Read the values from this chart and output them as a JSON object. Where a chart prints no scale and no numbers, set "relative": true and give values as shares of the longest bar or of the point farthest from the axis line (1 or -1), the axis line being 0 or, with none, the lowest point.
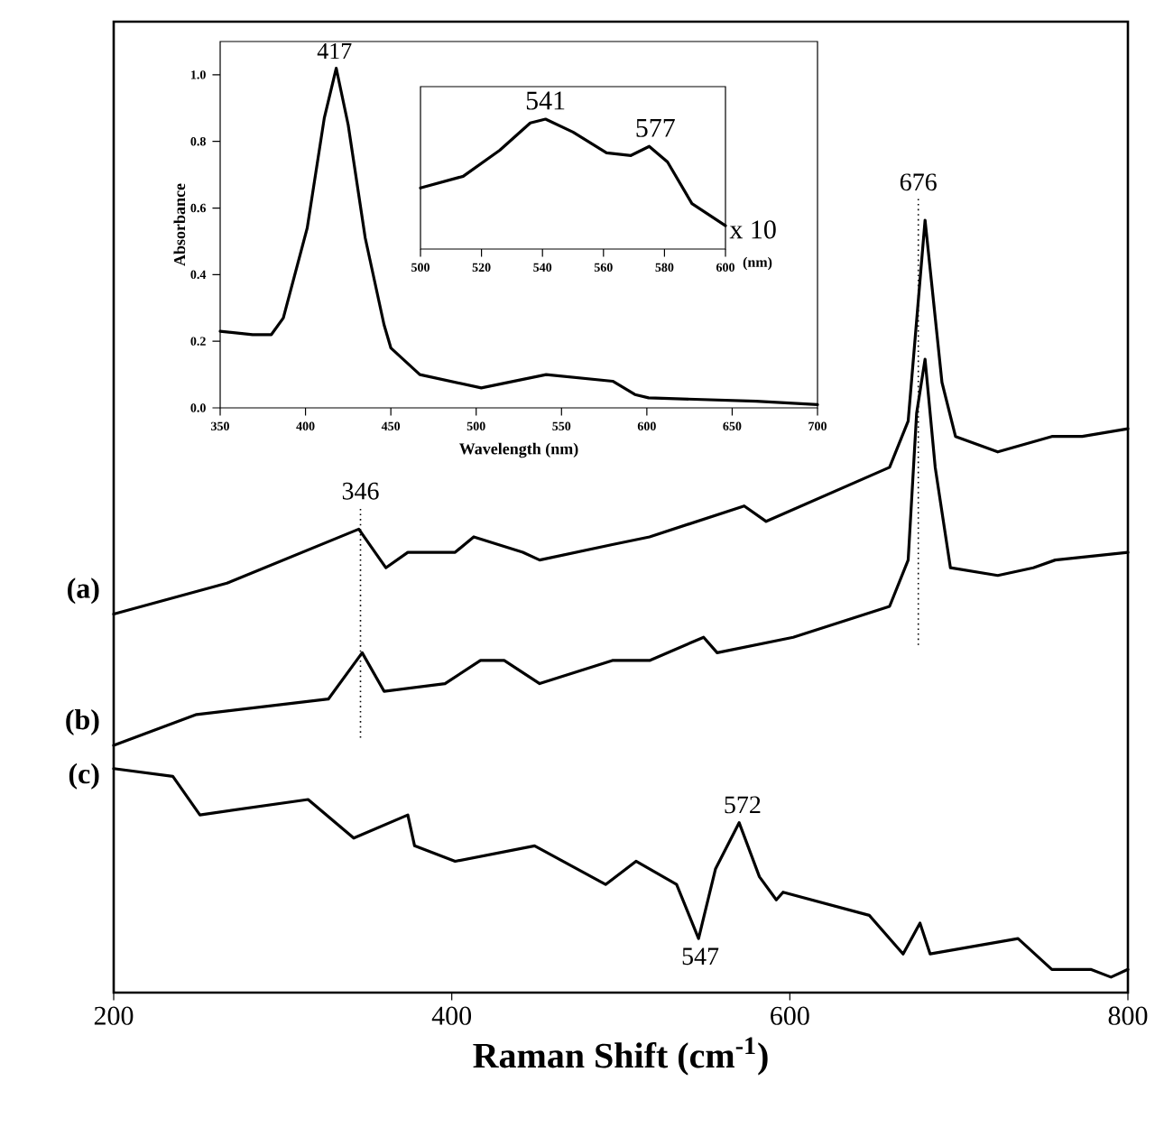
{
  "chart_data": [
    {
      "type": "line",
      "xlabel": "Raman Shift (cm$^{-1}$)",
      "relative": true,
      "xlim": [
        200,
        800
      ],
      "xticks": [
        200,
        400,
        600,
        800
      ],
      "series": [
        {
          "name": "(a)",
          "color": "#000000",
          "x": [
            200,
            267,
            345,
            361,
            374,
            402,
            413,
            442,
            452,
            495,
            517,
            573,
            586,
            659,
            670,
            680,
            690,
            698,
            723,
            755,
            773,
            800
          ],
          "values": [
            0.49,
            0.53,
            0.6,
            0.55,
            0.57,
            0.57,
            0.59,
            0.57,
            0.56,
            0.58,
            0.59,
            0.63,
            0.61,
            0.68,
            0.74,
            1.0,
            0.79,
            0.72,
            0.7,
            0.72,
            0.72,
            0.73
          ]
        },
        {
          "name": "(b)",
          "color": "#000000",
          "x": [
            200,
            249,
            327,
            347,
            360,
            396,
            417,
            431,
            452,
            495,
            517,
            549,
            557,
            602,
            659,
            670,
            675,
            680,
            686,
            695,
            723,
            744,
            757,
            800
          ],
          "values": [
            0.32,
            0.36,
            0.38,
            0.44,
            0.39,
            0.4,
            0.43,
            0.43,
            0.4,
            0.43,
            0.43,
            0.46,
            0.44,
            0.46,
            0.5,
            0.56,
            0.75,
            0.82,
            0.68,
            0.55,
            0.54,
            0.55,
            0.56,
            0.57
          ]
        },
        {
          "name": "(c)",
          "color": "#000000",
          "x": [
            200,
            235,
            251,
            315,
            342,
            374,
            378,
            402,
            449,
            491,
            509,
            533,
            546,
            556,
            570,
            582,
            592,
            596,
            647,
            667,
            677,
            683,
            735,
            755,
            778,
            790,
            800
          ],
          "values": [
            0.29,
            0.28,
            0.23,
            0.25,
            0.2,
            0.23,
            0.19,
            0.17,
            0.19,
            0.14,
            0.17,
            0.14,
            0.07,
            0.16,
            0.22,
            0.15,
            0.12,
            0.13,
            0.1,
            0.05,
            0.09,
            0.05,
            0.07,
            0.03,
            0.03,
            0.02,
            0.03
          ]
        }
      ],
      "ref_lines": [
        {
          "axis": "x",
          "value": 346,
          "label": "346",
          "line_style": "dotted"
        },
        {
          "axis": "x",
          "value": 676,
          "label": "676",
          "line_style": "dotted"
        }
      ],
      "annotations": [
        {
          "text": "572",
          "x": 572,
          "y": 0.22
        },
        {
          "text": "547",
          "x": 547,
          "y": 0.07
        }
      ]
    },
    {
      "type": "line",
      "xlabel": "Wavelength (nm)",
      "ylabel": "Absorbance",
      "xlim": [
        350,
        700
      ],
      "ylim": [
        0,
        1.1
      ],
      "xticks": [
        350,
        400,
        450,
        500,
        550,
        600,
        650,
        700
      ],
      "yticks": [
        {
          "value": 0,
          "label": "0.0"
        },
        0.2,
        0.4,
        0.6,
        0.8,
        {
          "value": 1,
          "label": "1.0"
        }
      ],
      "x": [
        350,
        369,
        380,
        387,
        401,
        411,
        418,
        425,
        435,
        446,
        450,
        467,
        503,
        541,
        580,
        593,
        601,
        664,
        700
      ],
      "values": [
        0.23,
        0.22,
        0.22,
        0.27,
        0.54,
        0.87,
        1.02,
        0.85,
        0.51,
        0.25,
        0.18,
        0.1,
        0.06,
        0.1,
        0.08,
        0.04,
        0.03,
        0.02,
        0.01
      ],
      "color": "#000000",
      "annotations": [
        {
          "text": "417",
          "x": 417,
          "y": 1.02
        }
      ]
    },
    {
      "type": "line",
      "xlabel": "(nm)",
      "relative": true,
      "xlim": [
        500,
        600
      ],
      "xticks": [
        500,
        520,
        540,
        560,
        580,
        600
      ],
      "x": [
        500,
        514,
        526,
        536,
        541,
        550,
        561,
        569,
        575,
        581,
        589,
        600
      ],
      "values": [
        0.47,
        0.56,
        0.76,
        0.97,
        1.0,
        0.9,
        0.74,
        0.72,
        0.79,
        0.67,
        0.35,
        0.18
      ],
      "color": "#000000",
      "annotations": [
        "x 10",
        {
          "text": "541",
          "x": 541,
          "y": 1.0
        },
        {
          "text": "577",
          "x": 577,
          "y": 0.79
        }
      ]
    }
  ]
}
